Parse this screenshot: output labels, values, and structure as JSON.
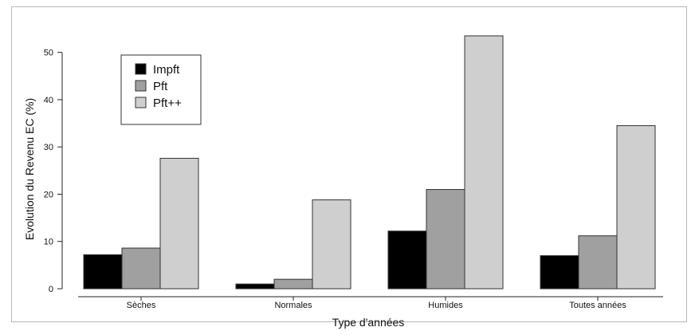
{
  "chart_data": {
    "type": "bar",
    "title": "",
    "xlabel": "Type d'années",
    "ylabel": "Evolution du Revenu EC (%)",
    "ylim": [
      0,
      54
    ],
    "yticks": [
      0,
      10,
      20,
      30,
      40,
      50
    ],
    "grid": false,
    "legend_position": "top-left",
    "categories": [
      "Sèches",
      "Normales",
      "Humides",
      "Toutes années"
    ],
    "series": [
      {
        "name": "Impft",
        "color": "#000000",
        "values": [
          7.2,
          1.0,
          12.2,
          7.0
        ]
      },
      {
        "name": "Pft",
        "color": "#a0a0a0",
        "values": [
          8.6,
          2.0,
          21.0,
          11.2
        ]
      },
      {
        "name": "Pft++",
        "color": "#cfcfcf",
        "values": [
          27.6,
          18.8,
          53.5,
          34.5
        ]
      }
    ]
  }
}
